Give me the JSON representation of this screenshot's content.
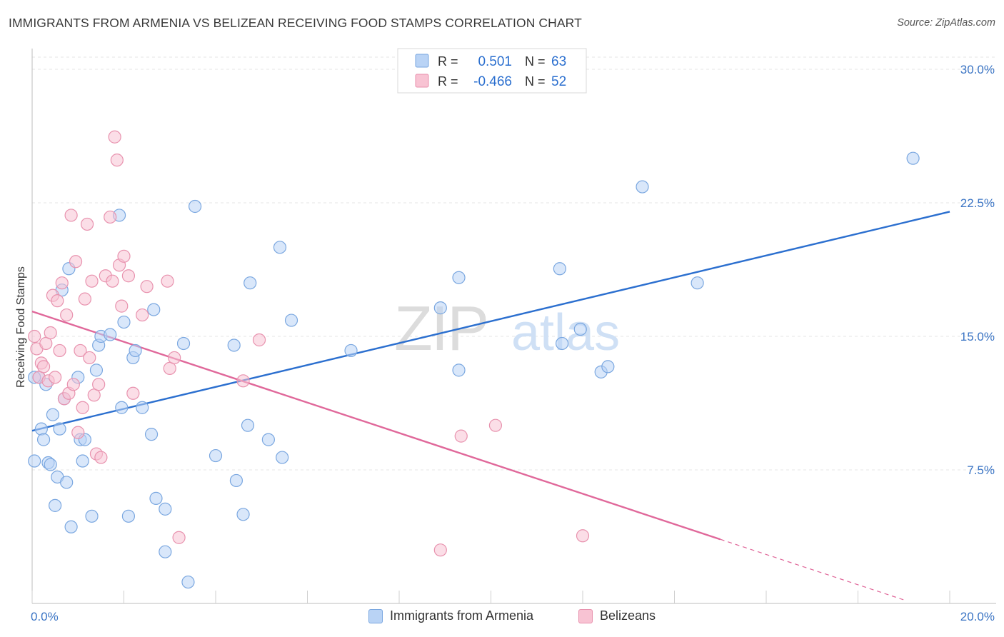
{
  "title": "IMMIGRANTS FROM ARMENIA VS BELIZEAN RECEIVING FOOD STAMPS CORRELATION CHART",
  "source": "Source: ZipAtlas.com",
  "watermark": {
    "zip": "ZIP",
    "atlas": "atlas"
  },
  "legend_top": {
    "r_label": "R =",
    "n_label": "N =",
    "rows": [
      {
        "r": "0.501",
        "n": "63"
      },
      {
        "r": "-0.466",
        "n": "52"
      }
    ]
  },
  "colors": {
    "blue_fill": "#b9d3f5",
    "blue_stroke": "#7aa7e0",
    "blue_line": "#2b6fcf",
    "pink_fill": "#f8c3d3",
    "pink_stroke": "#e892ae",
    "pink_line": "#e0689a",
    "tick_text": "#3a74c4"
  },
  "chart_data": {
    "type": "scatter",
    "title": "IMMIGRANTS FROM ARMENIA VS BELIZEAN RECEIVING FOOD STAMPS CORRELATION CHART",
    "xlabel": "",
    "ylabel": "Receiving Food Stamps",
    "xlim": [
      0,
      20
    ],
    "ylim": [
      0,
      30
    ],
    "x_tick_labels": [
      "0.0%",
      "20.0%"
    ],
    "y_ticks": [
      7.5,
      15.0,
      22.5,
      30.0
    ],
    "y_tick_labels": [
      "7.5%",
      "15.0%",
      "22.5%",
      "30.0%"
    ],
    "grid": true,
    "legend_position": "top-center",
    "series": [
      {
        "name": "Immigrants from Armenia",
        "r": 0.501,
        "n": 63,
        "trend": {
          "x0": 0.0,
          "y0": 9.7,
          "x1": 20.0,
          "y1": 22.0
        },
        "points": [
          [
            0.15,
            12.7
          ],
          [
            0.2,
            9.8
          ],
          [
            0.25,
            9.2
          ],
          [
            0.3,
            12.3
          ],
          [
            0.35,
            7.9
          ],
          [
            0.4,
            7.8
          ],
          [
            0.45,
            10.6
          ],
          [
            0.5,
            5.5
          ],
          [
            0.55,
            7.1
          ],
          [
            0.6,
            9.8
          ],
          [
            0.65,
            17.6
          ],
          [
            0.7,
            11.5
          ],
          [
            0.75,
            6.8
          ],
          [
            0.8,
            18.8
          ],
          [
            0.85,
            4.3
          ],
          [
            1.0,
            12.7
          ],
          [
            1.05,
            9.2
          ],
          [
            1.1,
            8.0
          ],
          [
            1.15,
            9.2
          ],
          [
            1.3,
            4.9
          ],
          [
            1.4,
            13.1
          ],
          [
            1.45,
            14.5
          ],
          [
            1.5,
            15.0
          ],
          [
            1.7,
            15.1
          ],
          [
            1.9,
            21.8
          ],
          [
            1.95,
            11.0
          ],
          [
            2.0,
            15.8
          ],
          [
            2.1,
            4.9
          ],
          [
            2.2,
            13.8
          ],
          [
            2.25,
            14.2
          ],
          [
            2.4,
            11.0
          ],
          [
            2.6,
            9.5
          ],
          [
            2.65,
            16.5
          ],
          [
            2.7,
            5.9
          ],
          [
            2.9,
            5.3
          ],
          [
            2.9,
            2.9
          ],
          [
            3.3,
            14.6
          ],
          [
            3.4,
            1.2
          ],
          [
            3.55,
            22.3
          ],
          [
            4.0,
            8.3
          ],
          [
            4.4,
            14.5
          ],
          [
            4.45,
            6.9
          ],
          [
            4.6,
            5.0
          ],
          [
            4.7,
            10.0
          ],
          [
            4.75,
            18.0
          ],
          [
            5.15,
            9.2
          ],
          [
            5.4,
            20.0
          ],
          [
            5.45,
            8.2
          ],
          [
            5.65,
            15.9
          ],
          [
            6.95,
            14.2
          ],
          [
            8.9,
            16.6
          ],
          [
            9.3,
            18.3
          ],
          [
            9.3,
            13.1
          ],
          [
            11.5,
            18.8
          ],
          [
            11.55,
            14.6
          ],
          [
            11.95,
            15.4
          ],
          [
            12.4,
            13.0
          ],
          [
            12.55,
            13.3
          ],
          [
            13.3,
            23.4
          ],
          [
            14.5,
            18.0
          ],
          [
            19.2,
            25.0
          ],
          [
            0.05,
            12.7
          ],
          [
            0.05,
            8.0
          ]
        ]
      },
      {
        "name": "Belizeans",
        "r": -0.466,
        "n": 52,
        "trend": {
          "x0": 0.0,
          "y0": 16.4,
          "x1": 15.0,
          "y1": 3.6,
          "dashed_to": {
            "x": 19.0,
            "y": 0.2
          }
        },
        "points": [
          [
            0.05,
            15.0
          ],
          [
            0.1,
            14.3
          ],
          [
            0.15,
            12.7
          ],
          [
            0.2,
            13.5
          ],
          [
            0.25,
            13.3
          ],
          [
            0.3,
            14.6
          ],
          [
            0.35,
            12.5
          ],
          [
            0.4,
            15.2
          ],
          [
            0.45,
            17.3
          ],
          [
            0.5,
            12.7
          ],
          [
            0.55,
            17.0
          ],
          [
            0.6,
            14.2
          ],
          [
            0.65,
            18.0
          ],
          [
            0.7,
            11.5
          ],
          [
            0.75,
            16.2
          ],
          [
            0.8,
            11.8
          ],
          [
            0.85,
            21.8
          ],
          [
            0.9,
            12.3
          ],
          [
            0.95,
            19.2
          ],
          [
            1.0,
            9.6
          ],
          [
            1.05,
            14.2
          ],
          [
            1.1,
            11.0
          ],
          [
            1.15,
            17.1
          ],
          [
            1.2,
            21.3
          ],
          [
            1.25,
            13.8
          ],
          [
            1.3,
            18.1
          ],
          [
            1.35,
            11.7
          ],
          [
            1.4,
            8.4
          ],
          [
            1.45,
            12.3
          ],
          [
            1.5,
            8.2
          ],
          [
            1.6,
            18.4
          ],
          [
            1.7,
            21.7
          ],
          [
            1.75,
            18.1
          ],
          [
            1.8,
            26.2
          ],
          [
            1.85,
            24.9
          ],
          [
            1.9,
            19.0
          ],
          [
            1.95,
            16.7
          ],
          [
            2.0,
            19.5
          ],
          [
            2.1,
            18.4
          ],
          [
            2.2,
            11.8
          ],
          [
            2.4,
            16.2
          ],
          [
            2.5,
            17.8
          ],
          [
            2.95,
            18.1
          ],
          [
            3.0,
            13.2
          ],
          [
            3.1,
            13.8
          ],
          [
            3.2,
            3.7
          ],
          [
            4.6,
            12.5
          ],
          [
            4.95,
            14.8
          ],
          [
            8.9,
            3.0
          ],
          [
            9.35,
            9.4
          ],
          [
            10.1,
            10.0
          ],
          [
            12.0,
            3.8
          ]
        ]
      }
    ]
  }
}
